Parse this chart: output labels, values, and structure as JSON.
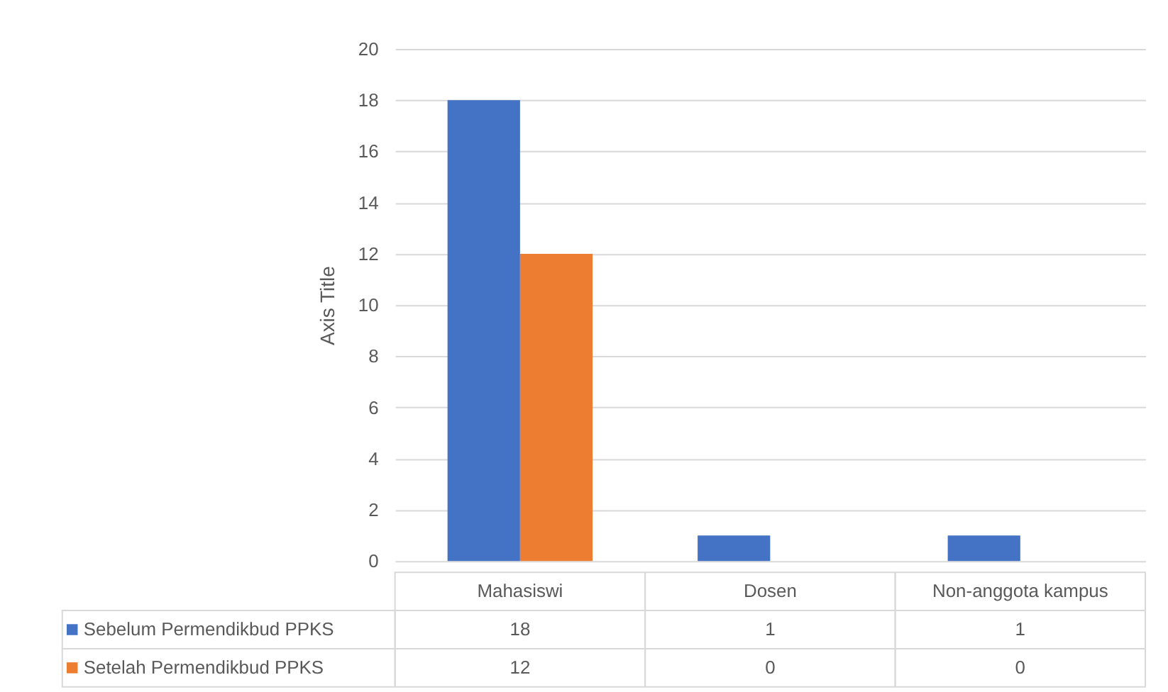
{
  "chart_data": {
    "type": "bar",
    "ylabel": "Axis Title",
    "categories": [
      "Mahasiswi",
      "Dosen",
      "Non-anggota kampus"
    ],
    "series": [
      {
        "name": "Sebelum Permendikbud PPKS",
        "color": "#4472c4",
        "values": [
          18,
          1,
          1
        ]
      },
      {
        "name": "Setelah Permendikbud PPKS",
        "color": "#ed7d31",
        "values": [
          12,
          0,
          0
        ]
      }
    ],
    "ylim": [
      0,
      20
    ],
    "yticks": [
      0,
      2,
      4,
      6,
      8,
      10,
      12,
      14,
      16,
      18,
      20
    ],
    "grid": "y",
    "legend": "bottom",
    "data_labels": true
  }
}
